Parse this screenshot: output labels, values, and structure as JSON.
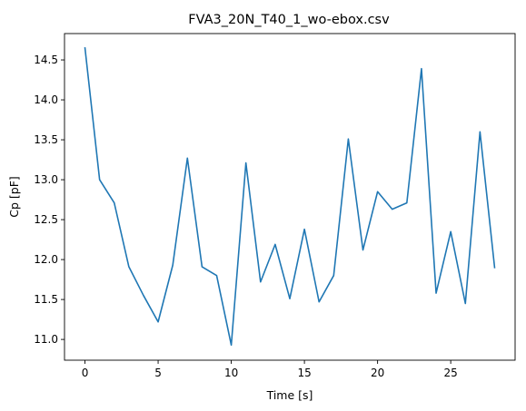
{
  "chart_data": {
    "type": "line",
    "title": "FVA3_20N_T40_1_wo-ebox.csv",
    "xlabel": "Time [s]",
    "ylabel": "Cp [pF]",
    "xlim": [
      -1.4,
      29.4
    ],
    "ylim": [
      10.74,
      14.83
    ],
    "x_ticks": [
      0,
      5,
      10,
      15,
      20,
      25
    ],
    "x_tick_labels": [
      "0",
      "5",
      "10",
      "15",
      "20",
      "25"
    ],
    "y_ticks": [
      11.0,
      11.5,
      12.0,
      12.5,
      13.0,
      13.5,
      14.0,
      14.5
    ],
    "y_tick_labels": [
      "11.0",
      "11.5",
      "12.0",
      "12.5",
      "13.0",
      "13.5",
      "14.0",
      "14.5"
    ],
    "grid": false,
    "line_color": "#1f77b4",
    "x": [
      0,
      1,
      2,
      3,
      4,
      5,
      6,
      7,
      8,
      9,
      10,
      11,
      12,
      13,
      14,
      15,
      16,
      17,
      18,
      19,
      20,
      21,
      22,
      23,
      24,
      25,
      26,
      27,
      28
    ],
    "values": [
      14.65,
      13.0,
      12.71,
      11.91,
      11.55,
      11.22,
      11.93,
      13.27,
      11.91,
      11.8,
      10.93,
      13.21,
      11.72,
      12.19,
      11.51,
      12.38,
      11.47,
      11.8,
      13.51,
      12.12,
      12.85,
      12.63,
      12.71,
      14.39,
      11.58,
      12.35,
      11.45,
      13.6,
      11.9
    ]
  }
}
